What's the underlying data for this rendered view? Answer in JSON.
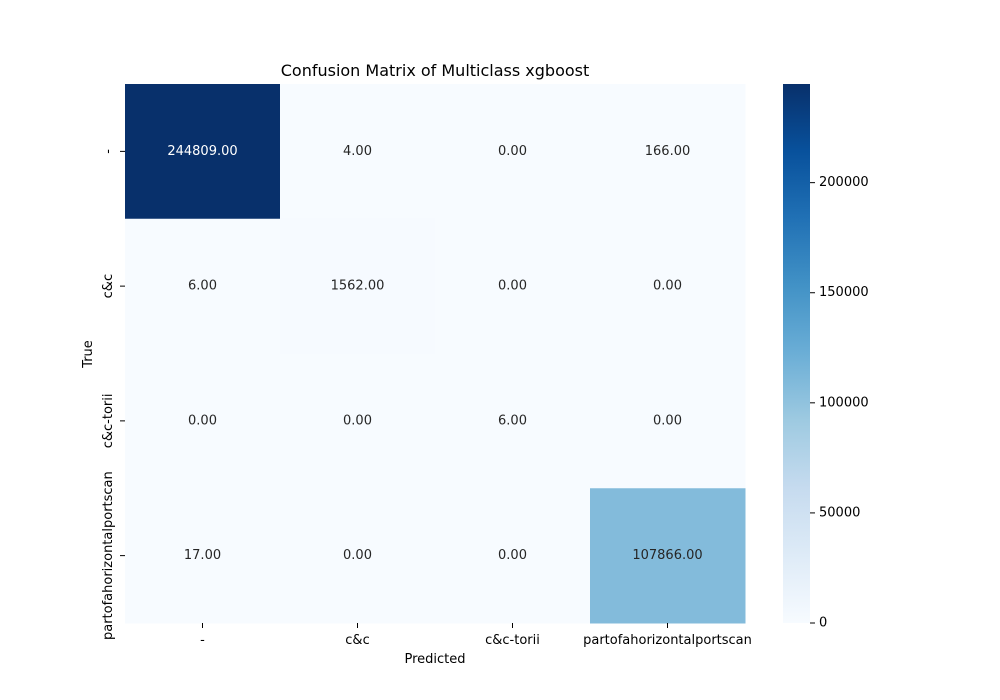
{
  "chart_data": {
    "type": "heatmap",
    "title": "Confusion Matrix of Multiclass xgboost",
    "xlabel": "Predicted",
    "ylabel": "True",
    "x_categories": [
      "-",
      "c&c",
      "c&c-torii",
      "partofahorizontalportscan"
    ],
    "y_categories": [
      "-",
      "c&c",
      "c&c-torii",
      "partofahorizontalportscan"
    ],
    "values": [
      [
        244809,
        4,
        0,
        166
      ],
      [
        6,
        1562,
        0,
        0
      ],
      [
        0,
        0,
        6,
        0
      ],
      [
        17,
        0,
        0,
        107866
      ]
    ],
    "cell_labels": [
      [
        "244809.00",
        "4.00",
        "0.00",
        "166.00"
      ],
      [
        "6.00",
        "1562.00",
        "0.00",
        "0.00"
      ],
      [
        "0.00",
        "0.00",
        "6.00",
        "0.00"
      ],
      [
        "17.00",
        "0.00",
        "0.00",
        "107866.00"
      ]
    ],
    "colormap": "Blues",
    "colormap_stops": [
      "#f7fbff",
      "#deebf7",
      "#c6dbef",
      "#9ecae1",
      "#6baed6",
      "#4292c6",
      "#2171b5",
      "#08519c",
      "#08306b"
    ],
    "color_range": [
      0,
      244809
    ],
    "colorbar_ticks": [
      0,
      50000,
      100000,
      150000,
      200000
    ],
    "colorbar_tick_labels": [
      "0",
      "50000",
      "100000",
      "150000",
      "200000"
    ],
    "light_text_color": "#ffffff",
    "dark_text_color": "#262626"
  }
}
